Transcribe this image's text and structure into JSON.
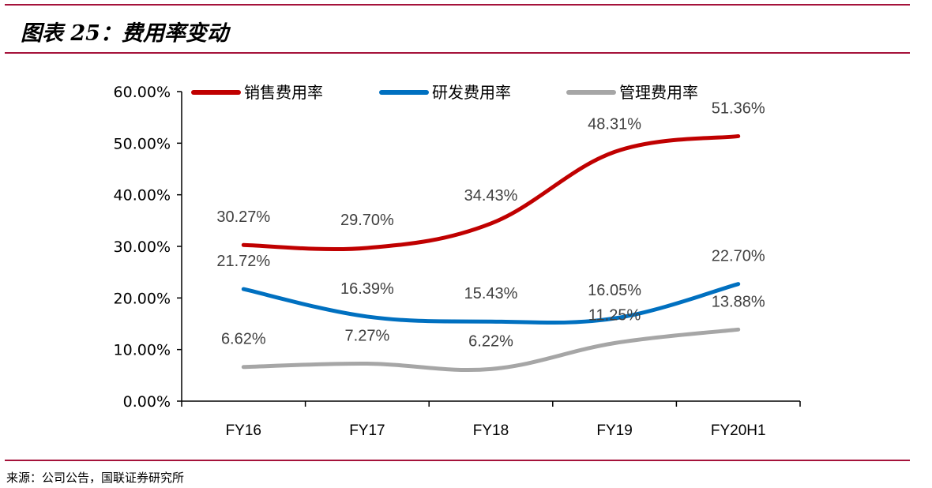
{
  "header": {
    "title": "图表 25：费用率变动"
  },
  "footer": {
    "source": "来源：公司公告，国联证券研究所"
  },
  "chart_data": {
    "type": "line",
    "title": "",
    "xlabel": "",
    "ylabel": "",
    "categories": [
      "FY16",
      "FY17",
      "FY18",
      "FY19",
      "FY20H1"
    ],
    "ylim": [
      0,
      60
    ],
    "yticks": [
      "0.00%",
      "10.00%",
      "20.00%",
      "30.00%",
      "40.00%",
      "50.00%",
      "60.00%"
    ],
    "legend_position": "top",
    "grid": false,
    "series": [
      {
        "name": "销售费用率",
        "color": "#c00000",
        "values": [
          30.27,
          29.7,
          34.43,
          48.31,
          51.36
        ],
        "labels": [
          "30.27%",
          "29.70%",
          "34.43%",
          "48.31%",
          "51.36%"
        ]
      },
      {
        "name": "研发费用率",
        "color": "#0070c0",
        "values": [
          21.72,
          16.39,
          15.43,
          16.05,
          22.7
        ],
        "labels": [
          "21.72%",
          "16.39%",
          "15.43%",
          "16.05%",
          "22.70%"
        ]
      },
      {
        "name": "管理费用率",
        "color": "#a6a6a6",
        "values": [
          6.62,
          7.27,
          6.22,
          11.25,
          13.88
        ],
        "labels": [
          "6.62%",
          "7.27%",
          "6.22%",
          "11.25%",
          "13.88%"
        ]
      }
    ]
  }
}
